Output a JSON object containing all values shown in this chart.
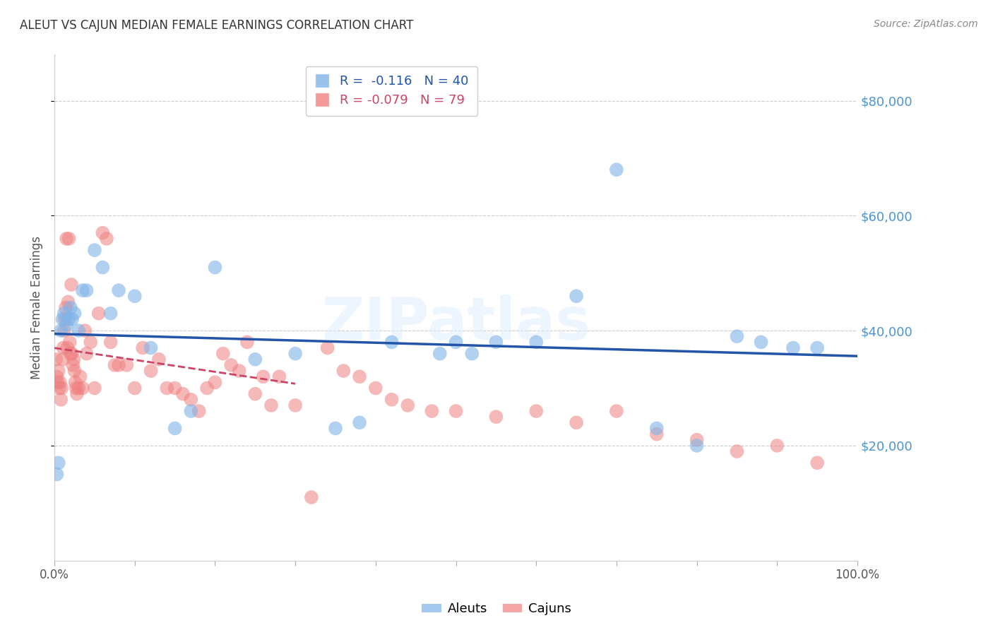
{
  "title": "ALEUT VS CAJUN MEDIAN FEMALE EARNINGS CORRELATION CHART",
  "source": "Source: ZipAtlas.com",
  "ylabel": "Median Female Earnings",
  "yticks": [
    20000,
    40000,
    60000,
    80000
  ],
  "ytick_labels": [
    "$20,000",
    "$40,000",
    "$60,000",
    "$80,000"
  ],
  "aleuts_color": "#7fb3e8",
  "cajuns_color": "#f08080",
  "aleuts_line_color": "#2255aa",
  "cajuns_line_color": "#cc4466",
  "background_color": "#ffffff",
  "grid_color": "#cccccc",
  "title_color": "#333333",
  "ytick_color": "#4d94d4",
  "watermark_text": "ZIPatlas",
  "aleuts_x": [
    0.3,
    0.5,
    0.8,
    1.0,
    1.2,
    1.5,
    1.8,
    2.0,
    2.2,
    2.5,
    3.0,
    3.5,
    4.0,
    5.0,
    6.0,
    7.0,
    8.0,
    10.0,
    12.0,
    15.0,
    17.0,
    20.0,
    25.0,
    30.0,
    35.0,
    38.0,
    42.0,
    48.0,
    50.0,
    52.0,
    55.0,
    60.0,
    65.0,
    70.0,
    75.0,
    80.0,
    85.0,
    88.0,
    92.0,
    95.0
  ],
  "aleuts_y": [
    15000,
    17000,
    40000,
    42000,
    43000,
    41000,
    42000,
    44000,
    42000,
    43000,
    40000,
    47000,
    47000,
    54000,
    51000,
    43000,
    47000,
    46000,
    37000,
    23000,
    26000,
    51000,
    35000,
    36000,
    23000,
    24000,
    38000,
    36000,
    38000,
    36000,
    38000,
    38000,
    46000,
    68000,
    23000,
    20000,
    39000,
    38000,
    37000,
    37000
  ],
  "cajuns_x": [
    0.2,
    0.3,
    0.4,
    0.5,
    0.6,
    0.7,
    0.8,
    0.9,
    1.0,
    1.1,
    1.2,
    1.3,
    1.4,
    1.5,
    1.6,
    1.7,
    1.8,
    1.9,
    2.0,
    2.1,
    2.2,
    2.3,
    2.4,
    2.5,
    2.6,
    2.7,
    2.8,
    3.0,
    3.2,
    3.5,
    3.8,
    4.0,
    4.5,
    5.0,
    5.5,
    6.0,
    6.5,
    7.0,
    7.5,
    8.0,
    9.0,
    10.0,
    11.0,
    12.0,
    13.0,
    14.0,
    15.0,
    16.0,
    17.0,
    18.0,
    19.0,
    20.0,
    21.0,
    22.0,
    23.0,
    24.0,
    25.0,
    26.0,
    27.0,
    28.0,
    30.0,
    32.0,
    34.0,
    36.0,
    38.0,
    40.0,
    42.0,
    44.0,
    47.0,
    50.0,
    55.0,
    60.0,
    65.0,
    70.0,
    75.0,
    80.0,
    85.0,
    90.0,
    95.0
  ],
  "cajuns_y": [
    35000,
    32000,
    31000,
    33000,
    30000,
    31000,
    28000,
    30000,
    35000,
    37000,
    40000,
    42000,
    44000,
    56000,
    37000,
    45000,
    56000,
    38000,
    36000,
    48000,
    36000,
    34000,
    35000,
    33000,
    31000,
    30000,
    29000,
    30000,
    32000,
    30000,
    40000,
    36000,
    38000,
    30000,
    43000,
    57000,
    56000,
    38000,
    34000,
    34000,
    34000,
    30000,
    37000,
    33000,
    35000,
    30000,
    30000,
    29000,
    28000,
    26000,
    30000,
    31000,
    36000,
    34000,
    33000,
    38000,
    29000,
    32000,
    27000,
    32000,
    27000,
    11000,
    37000,
    33000,
    32000,
    30000,
    28000,
    27000,
    26000,
    26000,
    25000,
    26000,
    24000,
    26000,
    22000,
    21000,
    19000,
    20000,
    17000
  ]
}
